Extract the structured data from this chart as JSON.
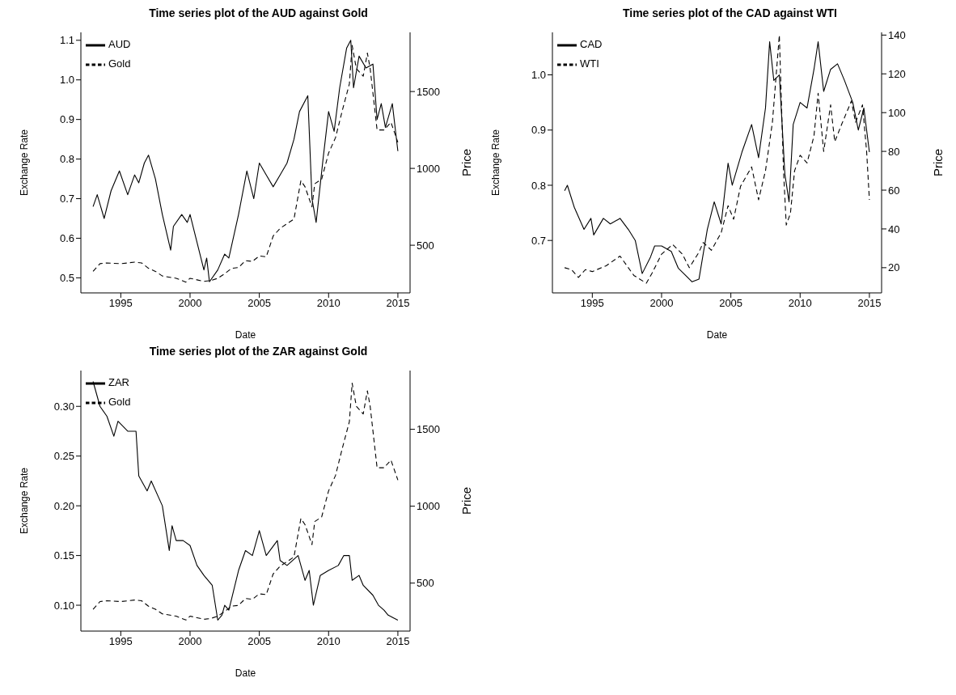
{
  "chart_data": [
    {
      "type": "line",
      "title": "Time series plot of the AUD against Gold",
      "xlabel": "Date",
      "ylabel": "Exchange Rate",
      "y2label": "Price",
      "legend": "top left",
      "xlim": [
        1992.12,
        2015.88
      ],
      "xticks": [
        1995,
        2000,
        2005,
        2010,
        2015
      ],
      "ylim": [
        0.462,
        1.12
      ],
      "yticks": [
        0.5,
        0.6,
        0.7,
        0.8,
        0.9,
        {
          "value": 1,
          "label": "1.0"
        },
        1.1
      ],
      "y2lim": [
        190,
        1885
      ],
      "y2ticks": [
        500,
        1000,
        1500
      ],
      "series": [
        {
          "name": "AUD",
          "color": "#000000",
          "line_style": "solid",
          "x": [
            1993,
            1993.3,
            1993.8,
            1994.3,
            1994.9,
            1995.5,
            1996,
            1996.3,
            1996.7,
            1997,
            1997.5,
            1998,
            1998.6,
            1998.8,
            1999.4,
            1999.8,
            2000,
            2000.5,
            2001,
            2001.2,
            2001.4,
            2002,
            2002.5,
            2002.8,
            2003.5,
            2004.1,
            2004.6,
            2005,
            2005.5,
            2006,
            2006.5,
            2007,
            2007.5,
            2007.9,
            2008.5,
            2008.8,
            2009.1,
            2009.6,
            2010,
            2010.4,
            2010.8,
            2011.3,
            2011.6,
            2011.8,
            2012.2,
            2012.7,
            2013.2,
            2013.5,
            2013.8,
            2014.1,
            2014.6,
            2015
          ],
          "values": [
            0.68,
            0.71,
            0.65,
            0.72,
            0.77,
            0.71,
            0.76,
            0.74,
            0.79,
            0.81,
            0.75,
            0.66,
            0.57,
            0.63,
            0.66,
            0.64,
            0.66,
            0.59,
            0.52,
            0.55,
            0.49,
            0.52,
            0.56,
            0.55,
            0.66,
            0.77,
            0.7,
            0.79,
            0.76,
            0.73,
            0.76,
            0.79,
            0.85,
            0.92,
            0.96,
            0.7,
            0.64,
            0.8,
            0.92,
            0.87,
            0.98,
            1.08,
            1.1,
            0.98,
            1.06,
            1.03,
            1.04,
            0.9,
            0.94,
            0.88,
            0.94,
            0.82
          ]
        },
        {
          "name": "Gold",
          "color": "#000000",
          "line_style": "dashed",
          "axis": "y2",
          "x": [
            1993,
            1993.5,
            1994,
            1995,
            1996,
            1996.5,
            1997,
            1997.5,
            1998,
            1999,
            1999.7,
            2000,
            2000.5,
            2001,
            2001.5,
            2002,
            2002.5,
            2003,
            2003.5,
            2004,
            2004.5,
            2005,
            2005.5,
            2006,
            2006.5,
            2007,
            2007.5,
            2008,
            2008.3,
            2008.8,
            2009,
            2009.5,
            2010,
            2010.5,
            2011,
            2011.5,
            2011.7,
            2012,
            2012.5,
            2012.8,
            2013,
            2013.5,
            2014,
            2014.5,
            2015
          ],
          "values": [
            330,
            380,
            385,
            380,
            390,
            385,
            350,
            330,
            300,
            285,
            260,
            285,
            275,
            265,
            270,
            285,
            315,
            350,
            355,
            400,
            395,
            430,
            425,
            560,
            610,
            640,
            670,
            920,
            880,
            750,
            900,
            930,
            1100,
            1200,
            1380,
            1550,
            1800,
            1650,
            1600,
            1750,
            1650,
            1250,
            1250,
            1300,
            1170
          ]
        }
      ]
    },
    {
      "type": "line",
      "title": "Time series plot of the CAD against WTI",
      "xlabel": "Date",
      "ylabel": "Exchange Rate",
      "y2label": "Price",
      "legend": "top left",
      "xlim": [
        1992.12,
        2015.88
      ],
      "xticks": [
        1995,
        2000,
        2005,
        2010,
        2015
      ],
      "ylim": [
        0.605,
        1.077
      ],
      "yticks": [
        0.7,
        0.8,
        0.9,
        {
          "value": 1,
          "label": "1.0"
        }
      ],
      "y2lim": [
        7,
        141.4
      ],
      "y2ticks": [
        20,
        40,
        60,
        80,
        100,
        120,
        140
      ],
      "series": [
        {
          "name": "CAD",
          "color": "#000000",
          "line_style": "solid",
          "x": [
            1993,
            1993.2,
            1993.7,
            1994.4,
            1994.9,
            1995.1,
            1995.8,
            1996.3,
            1997,
            1997.6,
            1998.1,
            1998.6,
            1999.2,
            1999.5,
            2000,
            2000.7,
            2001.2,
            2001.6,
            2002.2,
            2002.7,
            2003.3,
            2003.8,
            2004.3,
            2004.8,
            2005.1,
            2005.8,
            2006.5,
            2007,
            2007.5,
            2007.8,
            2008.1,
            2008.5,
            2008.9,
            2009.2,
            2009.5,
            2010,
            2010.5,
            2011,
            2011.3,
            2011.7,
            2012.2,
            2012.7,
            2013.2,
            2013.8,
            2014.2,
            2014.6,
            2015
          ],
          "values": [
            0.79,
            0.8,
            0.76,
            0.72,
            0.74,
            0.71,
            0.74,
            0.73,
            0.74,
            0.72,
            0.7,
            0.64,
            0.67,
            0.69,
            0.69,
            0.68,
            0.65,
            0.64,
            0.625,
            0.63,
            0.72,
            0.77,
            0.73,
            0.84,
            0.8,
            0.86,
            0.91,
            0.85,
            0.94,
            1.06,
            0.99,
            1,
            0.82,
            0.77,
            0.91,
            0.95,
            0.94,
            1.01,
            1.06,
            0.97,
            1.01,
            1.02,
            0.99,
            0.95,
            0.9,
            0.94,
            0.86
          ]
        },
        {
          "name": "WTI",
          "color": "#000000",
          "line_style": "dashed",
          "axis": "y2",
          "x": [
            1993,
            1993.5,
            1994,
            1994.5,
            1995,
            1996,
            1997,
            1997.5,
            1998,
            1998.9,
            1999.3,
            2000,
            2000.8,
            2001.5,
            2002,
            2002.7,
            2003,
            2003.6,
            2004.3,
            2004.8,
            2005.2,
            2005.7,
            2006.5,
            2007,
            2007.5,
            2008,
            2008.5,
            2008.8,
            2009,
            2009.3,
            2009.6,
            2010,
            2010.5,
            2011,
            2011.3,
            2011.7,
            2012.2,
            2012.5,
            2013,
            2013.7,
            2014,
            2014.5,
            2014.8,
            2015
          ],
          "values": [
            20,
            19,
            15,
            19,
            18,
            21,
            26,
            21,
            16,
            12,
            17,
            27,
            32,
            27,
            20,
            28,
            33,
            29,
            38,
            52,
            45,
            62,
            72,
            55,
            70,
            95,
            140,
            70,
            42,
            48,
            70,
            78,
            74,
            88,
            110,
            80,
            104,
            85,
            94,
            106,
            95,
            104,
            80,
            55
          ]
        }
      ]
    },
    {
      "type": "line",
      "title": "Time series plot of the ZAR against Gold",
      "xlabel": "Date",
      "ylabel": "Exchange Rate",
      "y2label": "Price",
      "legend": "top left",
      "xlim": [
        1992.12,
        2015.88
      ],
      "xticks": [
        1995,
        2000,
        2005,
        2010,
        2015
      ],
      "ylim": [
        0.074,
        0.336
      ],
      "yticks": [
        {
          "value": 0.1,
          "label": "0.10"
        },
        0.15,
        {
          "value": 0.2,
          "label": "0.20"
        },
        0.25,
        {
          "value": 0.3,
          "label": "0.30"
        }
      ],
      "y2lim": [
        188,
        1882
      ],
      "y2ticks": [
        500,
        1000,
        1500
      ],
      "series": [
        {
          "name": "ZAR",
          "color": "#000000",
          "line_style": "solid",
          "x": [
            1993,
            1993.5,
            1994,
            1994.5,
            1994.8,
            1995.5,
            1996.1,
            1996.3,
            1996.9,
            1997.2,
            1998,
            1998.5,
            1998.7,
            1999,
            1999.5,
            2000,
            2000.5,
            2001,
            2001.6,
            2002,
            2002.3,
            2002.5,
            2002.8,
            2003.5,
            2004,
            2004.5,
            2005,
            2005.5,
            2006.3,
            2006.5,
            2007,
            2007.8,
            2008.3,
            2008.6,
            2008.9,
            2009.4,
            2010,
            2010.7,
            2011.1,
            2011.5,
            2011.7,
            2012.2,
            2012.5,
            2013.2,
            2013.6,
            2014,
            2014.3,
            2015
          ],
          "values": [
            0.325,
            0.3,
            0.29,
            0.27,
            0.285,
            0.275,
            0.275,
            0.23,
            0.215,
            0.225,
            0.2,
            0.155,
            0.18,
            0.165,
            0.165,
            0.16,
            0.14,
            0.13,
            0.12,
            0.085,
            0.09,
            0.1,
            0.095,
            0.135,
            0.155,
            0.15,
            0.175,
            0.15,
            0.165,
            0.145,
            0.14,
            0.15,
            0.125,
            0.135,
            0.1,
            0.13,
            0.135,
            0.14,
            0.15,
            0.15,
            0.125,
            0.13,
            0.12,
            0.11,
            0.1,
            0.095,
            0.09,
            0.085
          ]
        },
        {
          "name": "Gold",
          "color": "#000000",
          "line_style": "dashed",
          "axis": "y2",
          "x": [
            1993,
            1993.5,
            1994,
            1995,
            1996,
            1996.5,
            1997,
            1997.5,
            1998,
            1999,
            1999.7,
            2000,
            2000.5,
            2001,
            2001.5,
            2002,
            2002.5,
            2003,
            2003.5,
            2004,
            2004.5,
            2005,
            2005.5,
            2006,
            2006.5,
            2007,
            2007.5,
            2008,
            2008.3,
            2008.8,
            2009,
            2009.5,
            2010,
            2010.5,
            2011,
            2011.5,
            2011.7,
            2012,
            2012.5,
            2012.8,
            2013,
            2013.5,
            2014,
            2014.5,
            2015
          ],
          "values": [
            330,
            380,
            385,
            380,
            390,
            385,
            350,
            330,
            300,
            285,
            260,
            285,
            275,
            265,
            270,
            285,
            315,
            350,
            355,
            400,
            395,
            430,
            425,
            560,
            610,
            640,
            670,
            920,
            880,
            750,
            900,
            930,
            1100,
            1200,
            1380,
            1550,
            1800,
            1650,
            1600,
            1750,
            1650,
            1250,
            1250,
            1300,
            1170
          ]
        }
      ]
    }
  ]
}
